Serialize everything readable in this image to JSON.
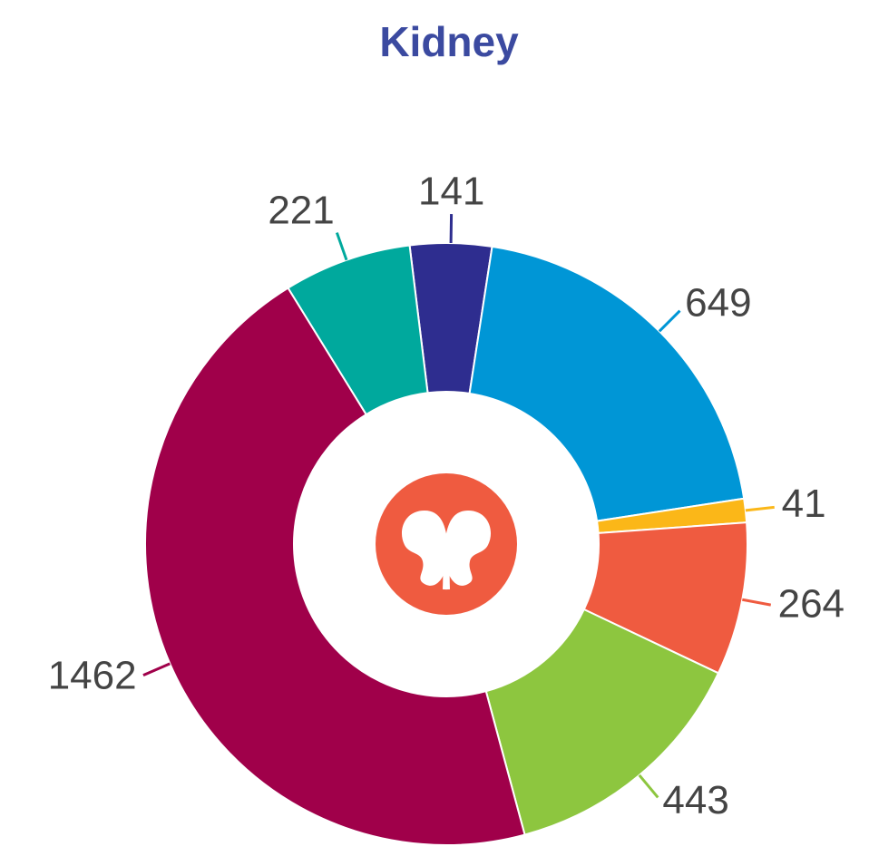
{
  "chart_data": {
    "type": "pie",
    "title": "Kidney",
    "values": [
      141,
      649,
      41,
      264,
      443,
      1462,
      221
    ],
    "colors": [
      "#2e2d8f",
      "#0096d6",
      "#fbb718",
      "#ef5b40",
      "#8dc63f",
      "#a0004a",
      "#00a99d"
    ]
  }
}
